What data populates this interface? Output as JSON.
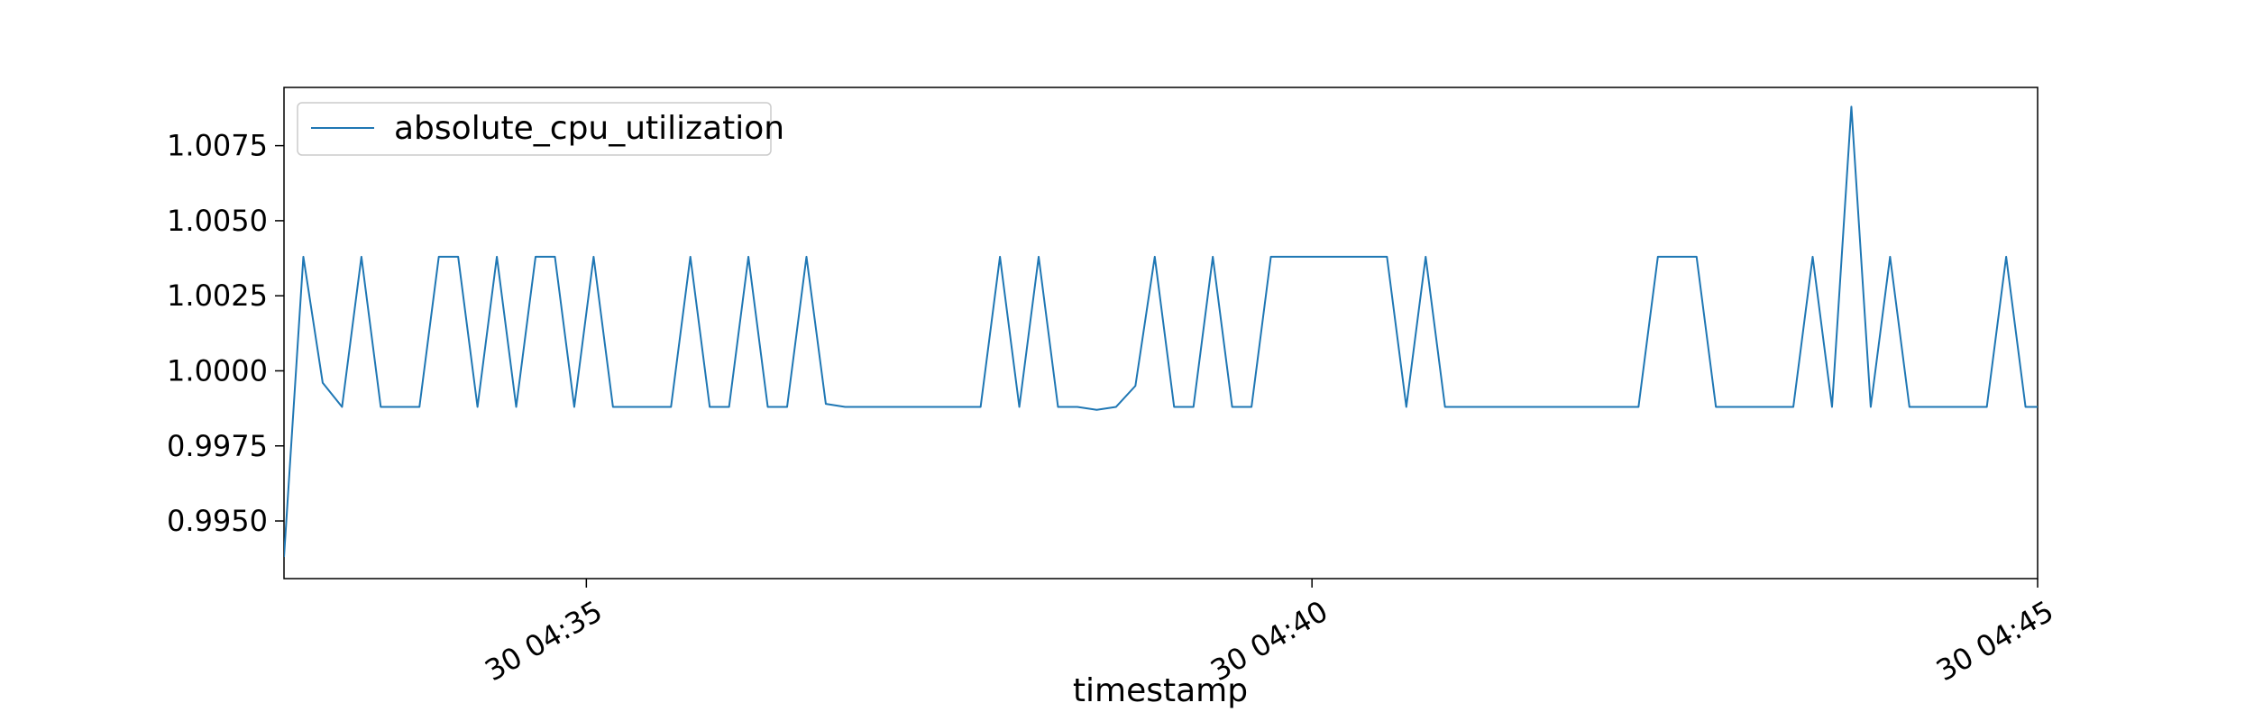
{
  "chart_data": {
    "type": "line",
    "title": "",
    "xlabel": "timestamp",
    "ylabel": "",
    "legend_position": "top-left",
    "grid": false,
    "xlim": [
      "04:32:55",
      "04:45:00"
    ],
    "ylim": [
      0.99308,
      1.00944
    ],
    "x_ticks": [
      {
        "value": "04:35",
        "label": "30 04:35"
      },
      {
        "value": "04:40",
        "label": "30 04:40"
      },
      {
        "value": "04:45",
        "label": "30 04:45"
      }
    ],
    "y_ticks": [
      {
        "value": 0.995,
        "label": "0.9950"
      },
      {
        "value": 0.9975,
        "label": "0.9975"
      },
      {
        "value": 1.0,
        "label": "1.0000"
      },
      {
        "value": 1.0025,
        "label": "1.0025"
      },
      {
        "value": 1.005,
        "label": "1.0050"
      },
      {
        "value": 1.0075,
        "label": "1.0075"
      }
    ],
    "series": [
      {
        "name": "absolute_cpu_utilization",
        "color": "#1f77b4",
        "x": [
          "04:32:55",
          "04:33:03",
          "04:33:11",
          "04:33:19",
          "04:33:27",
          "04:33:35",
          "04:33:43",
          "04:33:51",
          "04:33:59",
          "04:34:07",
          "04:34:15",
          "04:34:23",
          "04:34:31",
          "04:34:39",
          "04:34:47",
          "04:34:55",
          "04:35:03",
          "04:35:11",
          "04:35:19",
          "04:35:27",
          "04:35:35",
          "04:35:43",
          "04:35:51",
          "04:35:59",
          "04:36:07",
          "04:36:15",
          "04:36:23",
          "04:36:31",
          "04:36:39",
          "04:36:47",
          "04:36:55",
          "04:37:03",
          "04:37:11",
          "04:37:19",
          "04:37:27",
          "04:37:35",
          "04:37:43",
          "04:37:51",
          "04:37:59",
          "04:38:07",
          "04:38:15",
          "04:38:23",
          "04:38:31",
          "04:38:39",
          "04:38:47",
          "04:38:55",
          "04:39:03",
          "04:39:11",
          "04:39:19",
          "04:39:27",
          "04:39:35",
          "04:39:43",
          "04:39:51",
          "04:39:59",
          "04:40:07",
          "04:40:15",
          "04:40:23",
          "04:40:31",
          "04:40:39",
          "04:40:47",
          "04:40:55",
          "04:41:03",
          "04:41:11",
          "04:41:19",
          "04:41:27",
          "04:41:35",
          "04:41:43",
          "04:41:51",
          "04:41:59",
          "04:42:07",
          "04:42:15",
          "04:42:23",
          "04:42:31",
          "04:42:39",
          "04:42:47",
          "04:42:55",
          "04:43:03",
          "04:43:11",
          "04:43:19",
          "04:43:27",
          "04:43:35",
          "04:43:43",
          "04:43:51",
          "04:43:59",
          "04:44:07",
          "04:44:15",
          "04:44:23",
          "04:44:31",
          "04:44:39",
          "04:44:47",
          "04:44:55",
          "04:45:03"
        ],
        "values": [
          0.9938,
          1.0038,
          0.9996,
          0.9988,
          1.0038,
          0.9988,
          0.9988,
          0.9988,
          1.0038,
          1.0038,
          0.9988,
          1.0038,
          0.9988,
          1.0038,
          1.0038,
          0.9988,
          1.0038,
          0.9988,
          0.9988,
          0.9988,
          0.9988,
          1.0038,
          0.9988,
          0.9988,
          1.0038,
          0.9988,
          0.9988,
          1.0038,
          0.9989,
          0.9988,
          0.9988,
          0.9988,
          0.9988,
          0.9988,
          0.9988,
          0.9988,
          0.9988,
          1.0038,
          0.9988,
          1.0038,
          0.9988,
          0.9988,
          0.9987,
          0.9988,
          0.9995,
          1.0038,
          0.9988,
          0.9988,
          1.0038,
          0.9988,
          0.9988,
          1.0038,
          1.0038,
          1.0038,
          1.0038,
          1.0038,
          1.0038,
          1.0038,
          0.9988,
          1.0038,
          0.9988,
          0.9988,
          0.9988,
          0.9988,
          0.9988,
          0.9988,
          0.9988,
          0.9988,
          0.9988,
          0.9988,
          0.9988,
          1.0038,
          1.0038,
          1.0038,
          0.9988,
          0.9988,
          0.9988,
          0.9988,
          0.9988,
          1.0038,
          0.9988,
          1.0088,
          0.9988,
          1.0038,
          0.9988,
          0.9988,
          0.9988,
          0.9988,
          0.9988,
          1.0038,
          0.9988,
          0.9988
        ]
      }
    ]
  }
}
